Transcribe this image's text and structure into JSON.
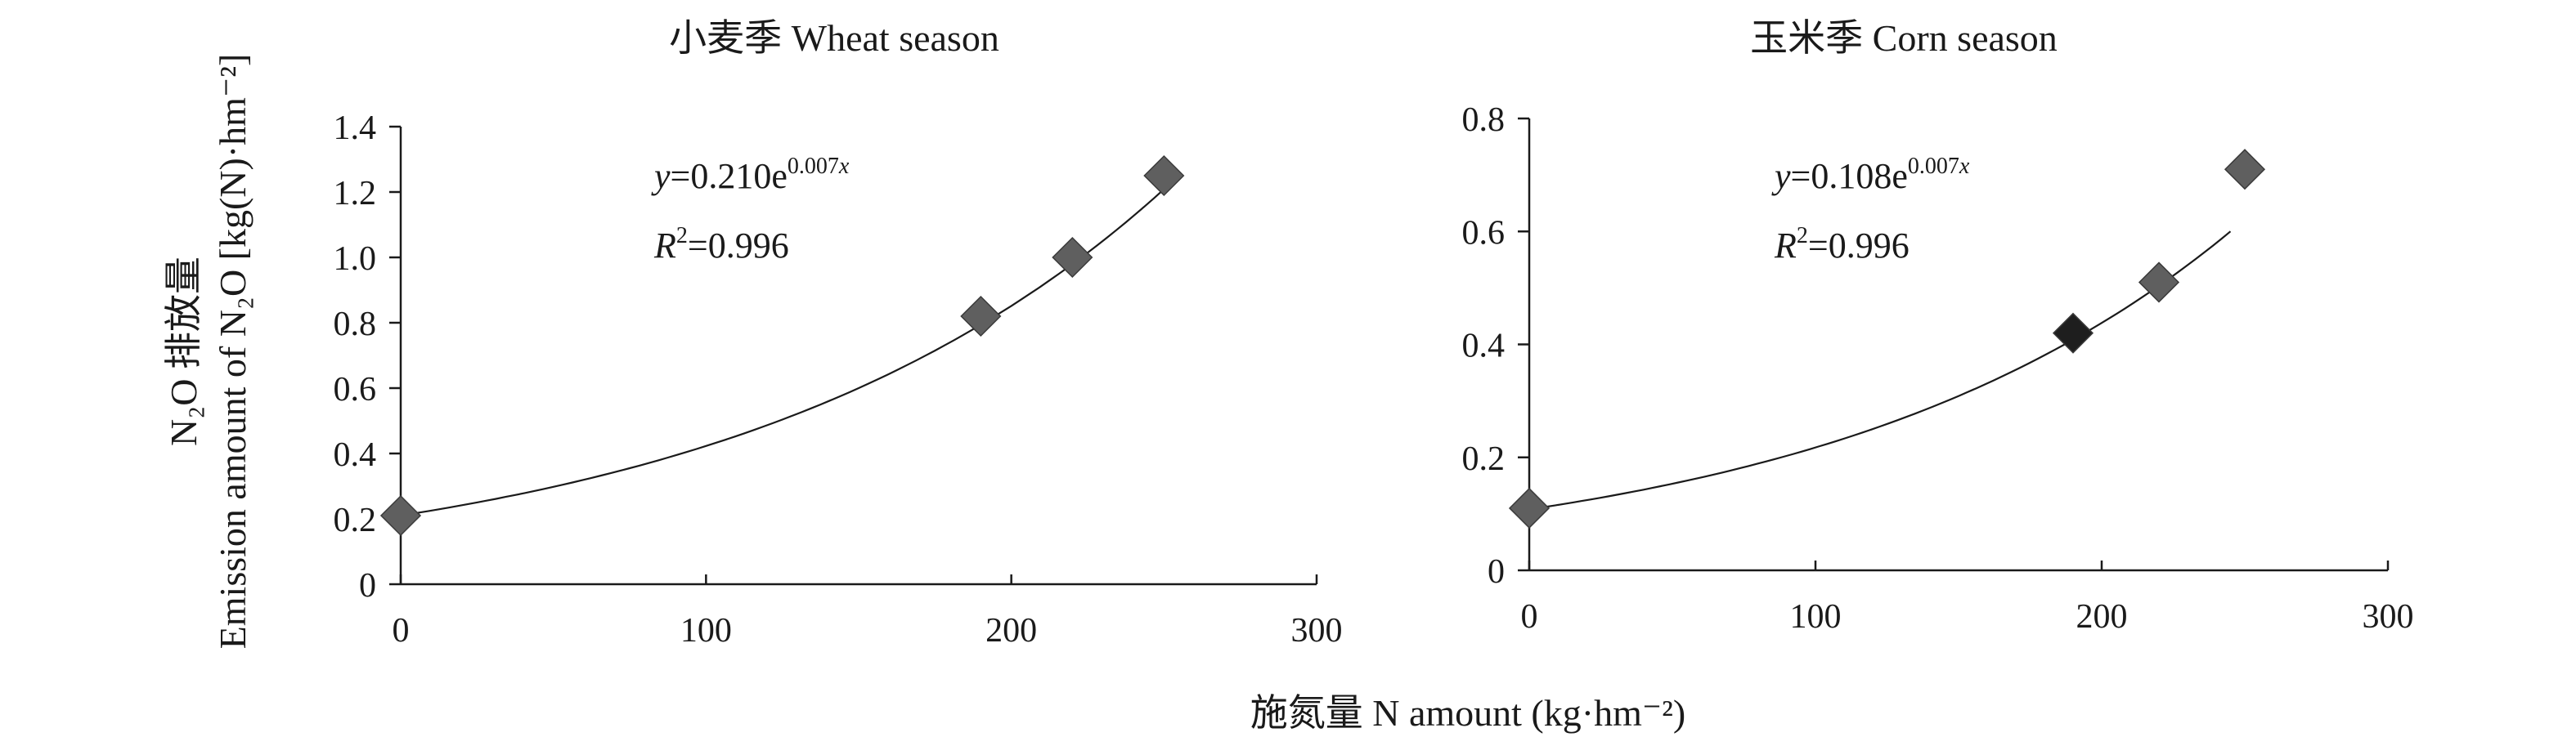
{
  "figure": {
    "y_label_cn": "N₂O 排放量",
    "y_label_en": "Emission amount of N₂O [kg(N)·hm⁻²]",
    "x_label": "施氮量 N amount (kg·hm⁻²)"
  },
  "chart_data": [
    {
      "type": "scatter",
      "title": "小麦季 Wheat season",
      "xlabel": "施氮量 N amount (kg·hm⁻²)",
      "ylabel": "Emission amount of N₂O [kg(N)·hm⁻²]",
      "xlim": [
        0,
        300
      ],
      "ylim": [
        0,
        1.4
      ],
      "xticks": [
        "0",
        "100",
        "200",
        "300"
      ],
      "yticks": [
        "0",
        "0.2",
        "0.4",
        "0.6",
        "0.8",
        "1.0",
        "1.2",
        "1.4"
      ],
      "points": [
        {
          "x": 0,
          "y": 0.21
        },
        {
          "x": 190,
          "y": 0.82
        },
        {
          "x": 220,
          "y": 1.0
        },
        {
          "x": 250,
          "y": 1.25
        }
      ],
      "fit": {
        "a": 0.21,
        "b": 0.007,
        "x_range": [
          0,
          250
        ]
      },
      "equation": {
        "y_var": "y",
        "eq": "=0.210e",
        "exp_coef": "0.007",
        "exp_var": "x"
      },
      "r2": {
        "r_var": "R",
        "sup": "2",
        "value": "=0.996"
      },
      "marker_color": "#5f5f5f"
    },
    {
      "type": "scatter",
      "title": "玉米季 Corn season",
      "xlabel": "施氮量 N amount (kg·hm⁻²)",
      "ylabel": "Emission amount of N₂O [kg(N)·hm⁻²]",
      "xlim": [
        0,
        300
      ],
      "ylim": [
        0,
        0.8
      ],
      "xticks": [
        "0",
        "100",
        "200",
        "300"
      ],
      "yticks": [
        "0",
        "0.2",
        "0.4",
        "0.6",
        "0.8"
      ],
      "points": [
        {
          "x": 0,
          "y": 0.11
        },
        {
          "x": 190,
          "y": 0.42
        },
        {
          "x": 220,
          "y": 0.51
        },
        {
          "x": 250,
          "y": 0.71
        }
      ],
      "fit": {
        "a": 0.108,
        "b": 0.007,
        "x_range": [
          0,
          245
        ]
      },
      "equation": {
        "y_var": "y",
        "eq": "=0.108e",
        "exp_coef": "0.007",
        "exp_var": "x"
      },
      "r2": {
        "r_var": "R",
        "sup": "2",
        "value": "=0.996"
      },
      "marker_color": "#5f5f5f",
      "highlight_color": "#1e1e1e"
    }
  ]
}
